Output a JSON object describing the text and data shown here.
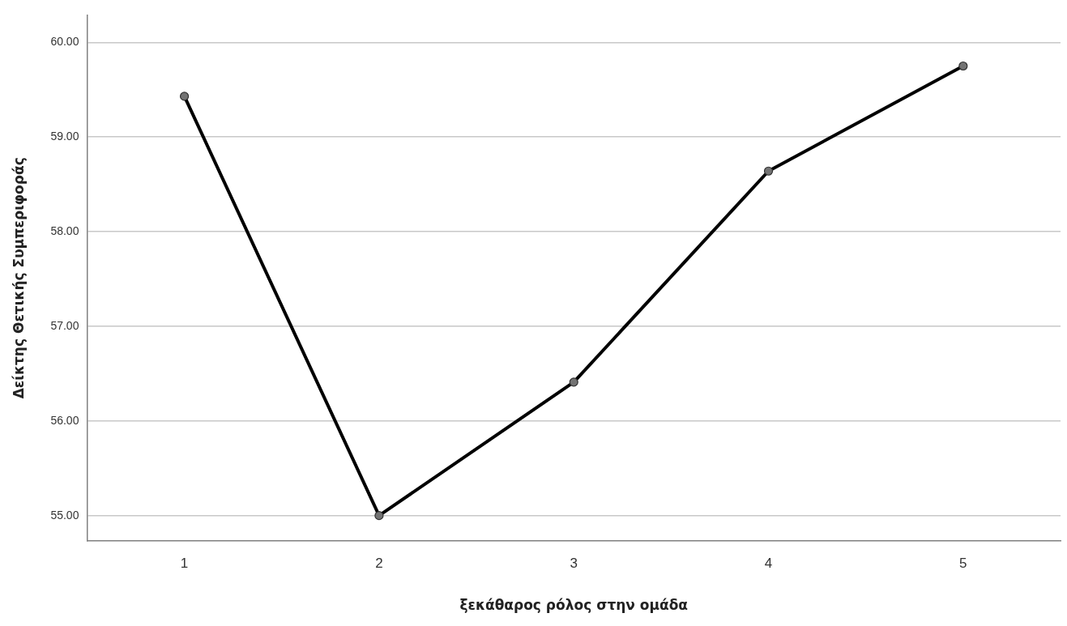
{
  "chart_data": {
    "type": "line",
    "xlabel": "ξεκάθαρος ρόλος στην ομάδα",
    "ylabel": "Δείκτης Θετικής Συμπεριφοράς",
    "categories": [
      "1",
      "2",
      "3",
      "4",
      "5"
    ],
    "series": [
      {
        "color": "#000000",
        "values": [
          59.43,
          55.0,
          56.41,
          58.64,
          59.75
        ]
      }
    ],
    "ylim": [
      54.73,
      60.29
    ],
    "yticks": [
      {
        "value": 55,
        "label": "55.00"
      },
      {
        "value": 56,
        "label": "56.00"
      },
      {
        "value": 57,
        "label": "57.00"
      },
      {
        "value": 58,
        "label": "58.00"
      },
      {
        "value": 59,
        "label": "59.00"
      },
      {
        "value": 60,
        "label": "60.00"
      }
    ],
    "grid": "y",
    "legend": false,
    "marker": "circle",
    "line_style": "solid"
  }
}
